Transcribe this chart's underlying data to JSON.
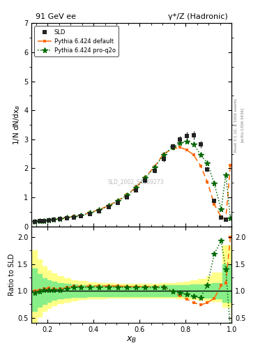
{
  "title_left": "91 GeV ee",
  "title_right": "γ*/Z (Hadronic)",
  "xlabel": "x_{B}",
  "ylabel_main": "1/N dN/dx_B",
  "ylabel_ratio": "Ratio to SLD",
  "right_label": "Rivet 3.1.10, ≥ 500k events",
  "right_label2": "[arXiv:1306.3436]",
  "watermark": "SLD_2002_S4869273",
  "legend": [
    "SLD",
    "Pythia 6.424 default",
    "Pythia 6.424 pro-q2o"
  ],
  "sld_x": [
    0.145,
    0.165,
    0.185,
    0.205,
    0.225,
    0.255,
    0.285,
    0.315,
    0.345,
    0.385,
    0.425,
    0.465,
    0.505,
    0.545,
    0.585,
    0.625,
    0.665,
    0.705,
    0.745,
    0.775,
    0.805,
    0.835,
    0.865,
    0.895,
    0.925,
    0.955,
    0.975
  ],
  "sld_y": [
    0.155,
    0.175,
    0.19,
    0.205,
    0.225,
    0.255,
    0.285,
    0.315,
    0.355,
    0.435,
    0.53,
    0.655,
    0.815,
    1.01,
    1.25,
    1.57,
    1.91,
    2.32,
    2.75,
    2.99,
    3.12,
    3.14,
    2.83,
    1.97,
    0.87,
    0.3,
    0.22
  ],
  "sld_yerr": [
    0.015,
    0.015,
    0.015,
    0.015,
    0.015,
    0.015,
    0.015,
    0.02,
    0.02,
    0.025,
    0.03,
    0.035,
    0.04,
    0.045,
    0.05,
    0.06,
    0.07,
    0.09,
    0.11,
    0.12,
    0.13,
    0.14,
    0.12,
    0.09,
    0.055,
    0.025,
    0.025
  ],
  "py_def_x": [
    0.145,
    0.165,
    0.185,
    0.205,
    0.225,
    0.255,
    0.285,
    0.315,
    0.345,
    0.385,
    0.425,
    0.465,
    0.505,
    0.545,
    0.585,
    0.625,
    0.665,
    0.705,
    0.745,
    0.775,
    0.805,
    0.835,
    0.865,
    0.895,
    0.925,
    0.955,
    0.975,
    0.995
  ],
  "py_def_y": [
    0.155,
    0.178,
    0.197,
    0.214,
    0.235,
    0.265,
    0.302,
    0.343,
    0.383,
    0.474,
    0.579,
    0.714,
    0.885,
    1.09,
    1.35,
    1.7,
    2.06,
    2.5,
    2.68,
    2.72,
    2.64,
    2.46,
    2.09,
    1.53,
    0.75,
    0.33,
    0.25,
    2.1
  ],
  "py_q2o_x": [
    0.145,
    0.165,
    0.185,
    0.205,
    0.225,
    0.255,
    0.285,
    0.315,
    0.345,
    0.385,
    0.425,
    0.465,
    0.505,
    0.545,
    0.585,
    0.625,
    0.665,
    0.705,
    0.745,
    0.775,
    0.805,
    0.835,
    0.865,
    0.895,
    0.925,
    0.955,
    0.975,
    0.995
  ],
  "py_q2o_y": [
    0.15,
    0.172,
    0.192,
    0.209,
    0.229,
    0.259,
    0.296,
    0.337,
    0.375,
    0.464,
    0.568,
    0.7,
    0.868,
    1.07,
    1.33,
    1.67,
    2.03,
    2.47,
    2.73,
    2.87,
    2.92,
    2.83,
    2.47,
    2.18,
    1.47,
    0.58,
    1.78,
    0.28
  ],
  "ratio_def_x": [
    0.145,
    0.165,
    0.185,
    0.205,
    0.225,
    0.255,
    0.285,
    0.315,
    0.345,
    0.385,
    0.425,
    0.465,
    0.505,
    0.545,
    0.585,
    0.625,
    0.665,
    0.705,
    0.745,
    0.775,
    0.805,
    0.835,
    0.865,
    0.895,
    0.925,
    0.955,
    0.975,
    0.995
  ],
  "ratio_def_y": [
    1.0,
    1.02,
    1.04,
    1.05,
    1.04,
    1.04,
    1.06,
    1.09,
    1.08,
    1.09,
    1.09,
    1.09,
    1.09,
    1.08,
    1.08,
    1.08,
    1.08,
    1.08,
    0.975,
    0.91,
    0.846,
    0.783,
    0.739,
    0.777,
    0.862,
    1.1,
    1.14,
    2.0
  ],
  "ratio_q2o_x": [
    0.145,
    0.165,
    0.185,
    0.205,
    0.225,
    0.255,
    0.285,
    0.315,
    0.345,
    0.385,
    0.425,
    0.465,
    0.505,
    0.545,
    0.585,
    0.625,
    0.665,
    0.705,
    0.745,
    0.775,
    0.805,
    0.835,
    0.865,
    0.895,
    0.925,
    0.955,
    0.975,
    0.995
  ],
  "ratio_q2o_y": [
    0.968,
    0.983,
    1.01,
    1.02,
    1.02,
    1.02,
    1.04,
    1.07,
    1.06,
    1.07,
    1.07,
    1.07,
    1.07,
    1.06,
    1.06,
    1.06,
    1.06,
    1.065,
    0.993,
    0.96,
    0.936,
    0.901,
    0.873,
    1.106,
    1.69,
    1.93,
    1.4,
    0.27
  ],
  "band_yellow_x": [
    0.13,
    0.155,
    0.175,
    0.195,
    0.215,
    0.24,
    0.27,
    0.3,
    0.33,
    0.37,
    0.41,
    0.45,
    0.49,
    0.53,
    0.57,
    0.61,
    0.65,
    0.69,
    0.73,
    0.76,
    0.79,
    0.82,
    0.855,
    0.89,
    0.915,
    0.96,
    1.0
  ],
  "band_yellow_lo": [
    0.38,
    0.52,
    0.62,
    0.68,
    0.73,
    0.77,
    0.8,
    0.82,
    0.84,
    0.855,
    0.862,
    0.867,
    0.87,
    0.872,
    0.873,
    0.873,
    0.872,
    0.87,
    0.866,
    0.861,
    0.855,
    0.847,
    0.836,
    0.822,
    0.803,
    0.7,
    0.43
  ],
  "band_yellow_hi": [
    1.75,
    1.58,
    1.46,
    1.38,
    1.32,
    1.27,
    1.23,
    1.2,
    1.18,
    1.16,
    1.15,
    1.14,
    1.13,
    1.13,
    1.13,
    1.13,
    1.13,
    1.14,
    1.15,
    1.16,
    1.17,
    1.19,
    1.22,
    1.27,
    1.34,
    1.85,
    2.15
  ],
  "band_green_x": [
    0.13,
    0.155,
    0.175,
    0.195,
    0.215,
    0.24,
    0.27,
    0.3,
    0.33,
    0.37,
    0.41,
    0.45,
    0.49,
    0.53,
    0.57,
    0.61,
    0.65,
    0.69,
    0.73,
    0.76,
    0.79,
    0.82,
    0.855,
    0.89,
    0.915,
    0.96,
    1.0
  ],
  "band_green_lo": [
    0.62,
    0.7,
    0.76,
    0.8,
    0.83,
    0.86,
    0.87,
    0.88,
    0.89,
    0.895,
    0.898,
    0.9,
    0.902,
    0.902,
    0.902,
    0.902,
    0.902,
    0.9,
    0.898,
    0.895,
    0.892,
    0.886,
    0.878,
    0.868,
    0.855,
    0.8,
    0.62
  ],
  "band_green_hi": [
    1.42,
    1.31,
    1.24,
    1.2,
    1.17,
    1.14,
    1.13,
    1.12,
    1.11,
    1.105,
    1.102,
    1.1,
    1.098,
    1.098,
    1.098,
    1.098,
    1.098,
    1.1,
    1.102,
    1.106,
    1.11,
    1.115,
    1.124,
    1.135,
    1.15,
    1.5,
    1.75
  ],
  "color_sld": "#222222",
  "color_def": "#ff6600",
  "color_q2o": "#006600",
  "color_yellow": "#ffff88",
  "color_green": "#88ee88",
  "ylim_main": [
    0,
    7
  ],
  "ylim_ratio": [
    0.4,
    2.2
  ],
  "xlim": [
    0.13,
    1.0
  ],
  "yticks_main": [
    0,
    1,
    2,
    3,
    4,
    5,
    6,
    7
  ],
  "yticks_ratio": [
    0.5,
    1.0,
    1.5,
    2.0
  ]
}
